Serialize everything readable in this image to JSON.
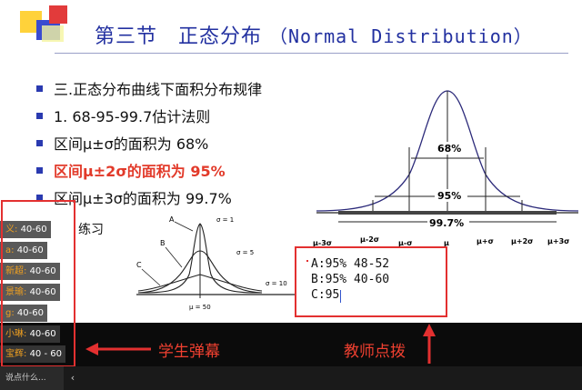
{
  "slide": {
    "title_cn": "第三节　正态分布",
    "title_en": "（Normal Distribution）",
    "bullets": [
      {
        "text": "三.正态分布曲线下面积分布规律",
        "highlight": false
      },
      {
        "text": "1. 68-95-99.7估计法则",
        "highlight": false
      },
      {
        "text": "区间μ±σ的面积为 68%",
        "highlight": false
      },
      {
        "text": "区间μ±2σ的面积为 95%",
        "highlight": true
      },
      {
        "text": "区间μ±3σ的面积为 99.7%",
        "highlight": false
      }
    ],
    "practice_label": "练习",
    "small_chart": {
      "labels": {
        "A": "A",
        "B": "B",
        "C": "C"
      },
      "sigma_1": "σ = 1",
      "sigma_5": "σ = 5",
      "sigma_10": "σ = 10",
      "mu": "μ = 50"
    },
    "bell": {
      "pct_68": "68%",
      "pct_95": "95%",
      "pct_997": "99.7%",
      "axis_labels": [
        "μ-3σ",
        "μ-2σ",
        "μ-σ",
        "μ",
        "μ+σ",
        "μ+2σ",
        "μ+3σ"
      ]
    },
    "answers": {
      "a": "A:95% 48-52",
      "b": "B:95% 40-60",
      "c": "C:95"
    }
  },
  "danmu": [
    {
      "name": "义:",
      "text": "40-60"
    },
    {
      "name": "a:",
      "text": "40-60"
    },
    {
      "name": "新超:",
      "text": "40-60"
    },
    {
      "name": "景瑜:",
      "text": "40-60"
    },
    {
      "name": "g:",
      "text": "40-60"
    },
    {
      "name": "小琳:",
      "text": "40-60"
    },
    {
      "name": "宝辉:",
      "text": "40 - 60"
    }
  ],
  "captions": {
    "student": "学生弹幕",
    "teacher": "教师点拨"
  },
  "statusbar": {
    "say_placeholder": "说点什么...",
    "collapse": "‹"
  }
}
